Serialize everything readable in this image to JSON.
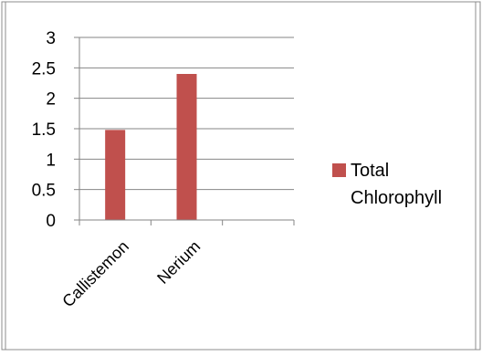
{
  "chart_data": {
    "type": "bar",
    "categories": [
      "Callistemon",
      "Nerium",
      ""
    ],
    "series": [
      {
        "name": "Total Chlorophyll",
        "values": [
          1.48,
          2.4,
          null
        ],
        "color": "#c0504d"
      }
    ],
    "ylim": [
      0,
      3
    ],
    "yticks": [
      "0",
      "0.5",
      "1",
      "1.5",
      "2",
      "2.5",
      "3"
    ],
    "grid": true,
    "legend": "right"
  },
  "legend": {
    "label_line1": "Total",
    "label_line2": "Chlorophyll"
  }
}
